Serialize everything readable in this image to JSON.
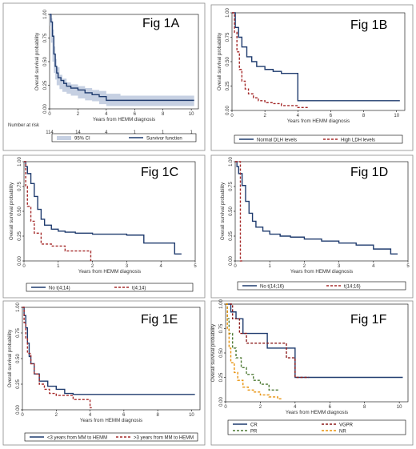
{
  "chart_data": [
    {
      "id": "A",
      "type": "line",
      "panel_label": "Fig 1A",
      "xlabel": "Years from HEMM diagnosis",
      "ylabel": "Overall survival probability",
      "xlim": [
        0,
        10.5
      ],
      "ylim": [
        0,
        1
      ],
      "xticks": [
        "0",
        "2",
        "4",
        "6",
        "8",
        "10"
      ],
      "yticks": [
        "0.00",
        "0.25",
        "0.50",
        "0.75",
        "1.00"
      ],
      "risk_table": {
        "title": "Number at risk",
        "values": [
          "114",
          "14",
          "4",
          "1",
          "1",
          "1"
        ]
      },
      "ci_band": {
        "name": "95% CI",
        "color": "#c6d0e2",
        "x": [
          0,
          0.1,
          0.2,
          0.3,
          0.4,
          0.5,
          0.7,
          0.9,
          1.2,
          1.5,
          2.0,
          2.5,
          3.0,
          3.5,
          4.0,
          5.0,
          6.0,
          8.0,
          10.2
        ],
        "upper": [
          1.0,
          0.96,
          0.84,
          0.66,
          0.53,
          0.44,
          0.36,
          0.32,
          0.28,
          0.26,
          0.24,
          0.22,
          0.2,
          0.19,
          0.16,
          0.14,
          0.14,
          0.14,
          0.14
        ],
        "lower": [
          1.0,
          0.88,
          0.7,
          0.5,
          0.38,
          0.31,
          0.25,
          0.21,
          0.18,
          0.16,
          0.14,
          0.11,
          0.09,
          0.08,
          0.05,
          0.03,
          0.03,
          0.03,
          0.03
        ]
      },
      "series": [
        {
          "name": "Survivor function",
          "color": "#1f3b6e",
          "dash": "",
          "x": [
            0,
            0.1,
            0.2,
            0.3,
            0.4,
            0.5,
            0.6,
            0.8,
            1.0,
            1.2,
            1.5,
            2.0,
            2.5,
            3.0,
            3.5,
            4.0,
            10.2
          ],
          "y": [
            1.0,
            0.92,
            0.77,
            0.58,
            0.45,
            0.38,
            0.33,
            0.3,
            0.27,
            0.24,
            0.22,
            0.2,
            0.17,
            0.15,
            0.13,
            0.09,
            0.09
          ]
        }
      ],
      "legend": [
        "95% CI",
        "Survivor function"
      ]
    },
    {
      "id": "B",
      "type": "line",
      "panel_label": "Fig 1B",
      "xlabel": "Years from HEMM diagnosis",
      "ylabel": "Overall survival probability",
      "xlim": [
        0,
        10.5
      ],
      "ylim": [
        0,
        1
      ],
      "xticks": [
        "0",
        "2",
        "4",
        "6",
        "8",
        "10"
      ],
      "yticks": [
        "0.00",
        "0.25",
        "0.50",
        "0.75",
        "1.00"
      ],
      "series": [
        {
          "name": "Normal DLH levels",
          "color": "#1f3b6e",
          "dash": "",
          "x": [
            0,
            0.2,
            0.4,
            0.6,
            0.9,
            1.2,
            1.5,
            2.0,
            2.5,
            3.0,
            3.8,
            4.0,
            10.2
          ],
          "y": [
            1.0,
            0.85,
            0.75,
            0.65,
            0.55,
            0.5,
            0.45,
            0.42,
            0.4,
            0.38,
            0.38,
            0.1,
            0.1
          ]
        },
        {
          "name": "High LDH levels",
          "color": "#a52a2a",
          "dash": "3,2",
          "x": [
            0,
            0.15,
            0.3,
            0.45,
            0.6,
            0.8,
            1.0,
            1.3,
            1.6,
            2.0,
            2.5,
            3.0,
            4.0,
            4.7
          ],
          "y": [
            1.0,
            0.8,
            0.6,
            0.42,
            0.3,
            0.22,
            0.17,
            0.13,
            0.1,
            0.08,
            0.07,
            0.05,
            0.03,
            0.03
          ]
        }
      ],
      "legend": [
        "Normal DLH levels",
        "High LDH levels"
      ]
    },
    {
      "id": "C",
      "type": "line",
      "panel_label": "Fig 1C",
      "xlabel": "Years from HEMM diagnosis",
      "ylabel": "Overall survival probability",
      "xlim": [
        0,
        5
      ],
      "ylim": [
        0,
        1
      ],
      "xticks": [
        "0",
        "1",
        "2",
        "3",
        "4",
        "5"
      ],
      "yticks": [
        "0.00",
        "0.25",
        "0.50",
        "0.75",
        "1.00"
      ],
      "series": [
        {
          "name": "No t(4;14)",
          "color": "#1f3b6e",
          "dash": "",
          "x": [
            0,
            0.05,
            0.1,
            0.2,
            0.3,
            0.4,
            0.5,
            0.6,
            0.8,
            1.0,
            1.2,
            1.5,
            2.0,
            2.5,
            3.0,
            3.5,
            4.0,
            4.4,
            4.6
          ],
          "y": [
            1.0,
            0.95,
            0.88,
            0.78,
            0.65,
            0.52,
            0.42,
            0.36,
            0.32,
            0.3,
            0.29,
            0.28,
            0.27,
            0.27,
            0.26,
            0.18,
            0.18,
            0.07,
            0.07
          ]
        },
        {
          "name": "t(4;14)",
          "color": "#a52a2a",
          "dash": "3,2",
          "x": [
            0,
            0.05,
            0.1,
            0.2,
            0.3,
            0.5,
            0.8,
            1.2,
            1.6,
            1.9,
            1.95
          ],
          "y": [
            1.0,
            0.75,
            0.55,
            0.4,
            0.28,
            0.17,
            0.15,
            0.1,
            0.1,
            0.1,
            0.0
          ]
        }
      ],
      "legend": [
        "No t(4;14)",
        "t(4;14)"
      ]
    },
    {
      "id": "D",
      "type": "line",
      "panel_label": "Fig 1D",
      "xlabel": "Years from HEMM diagnosis",
      "ylabel": "Overall survival probability",
      "xlim": [
        0,
        5
      ],
      "ylim": [
        0,
        1
      ],
      "xticks": [
        "0",
        "1",
        "2",
        "3",
        "4",
        "5"
      ],
      "yticks": [
        "0.00",
        "0.25",
        "0.50",
        "0.75",
        "1.00"
      ],
      "series": [
        {
          "name": "No t(14;16)",
          "color": "#1f3b6e",
          "dash": "",
          "x": [
            0,
            0.05,
            0.1,
            0.2,
            0.3,
            0.4,
            0.5,
            0.6,
            0.8,
            1.0,
            1.3,
            1.6,
            2.0,
            2.5,
            3.0,
            3.5,
            4.0,
            4.5,
            4.7
          ],
          "y": [
            1.0,
            0.95,
            0.88,
            0.76,
            0.6,
            0.48,
            0.4,
            0.34,
            0.3,
            0.27,
            0.25,
            0.24,
            0.22,
            0.2,
            0.18,
            0.16,
            0.12,
            0.07,
            0.07
          ]
        },
        {
          "name": "t(14;16)",
          "color": "#a52a2a",
          "dash": "3,2",
          "x": [
            0,
            0.15,
            0.15,
            0.2
          ],
          "y": [
            1.0,
            1.0,
            0.0,
            0.0
          ]
        }
      ],
      "legend": [
        "No t(14;16)",
        "t(14;16)"
      ]
    },
    {
      "id": "E",
      "type": "line",
      "panel_label": "Fig 1E",
      "xlabel": "Years from HEMM diagnosis",
      "ylabel": "Overall survival probability",
      "xlim": [
        0,
        10.5
      ],
      "ylim": [
        0,
        1
      ],
      "xticks": [
        "0",
        "2",
        "4",
        "6",
        "8",
        "10"
      ],
      "yticks": [
        "0.00",
        "0.25",
        "0.50",
        "0.75",
        "1.00"
      ],
      "series": [
        {
          "name": "<3 years from MM to HEMM",
          "color": "#1f3b6e",
          "dash": "",
          "x": [
            0,
            0.1,
            0.2,
            0.3,
            0.4,
            0.5,
            0.7,
            1.0,
            1.5,
            2.0,
            2.5,
            3.0,
            4.0,
            10.2
          ],
          "y": [
            1.0,
            0.92,
            0.8,
            0.65,
            0.52,
            0.45,
            0.35,
            0.28,
            0.23,
            0.2,
            0.16,
            0.15,
            0.15,
            0.15
          ]
        },
        {
          "name": ">3 years from MM to HEMM",
          "color": "#a52a2a",
          "dash": "3,2",
          "x": [
            0,
            0.1,
            0.2,
            0.3,
            0.5,
            0.7,
            1.0,
            1.3,
            1.6,
            2.0,
            3.0,
            4.0,
            4.0,
            4.1
          ],
          "y": [
            1.0,
            0.85,
            0.7,
            0.55,
            0.45,
            0.35,
            0.25,
            0.2,
            0.16,
            0.14,
            0.1,
            0.08,
            0.02,
            0.02
          ]
        }
      ],
      "legend": [
        "<3 years from MM to HEMM",
        ">3 years from MM to HEMM"
      ]
    },
    {
      "id": "F",
      "type": "line",
      "panel_label": "Fig 1F",
      "xlabel": "Years from HEMM diagnosis",
      "ylabel": "Overall survival probability",
      "xlim": [
        0,
        10.5
      ],
      "ylim": [
        0,
        1
      ],
      "xticks": [
        "0",
        "2",
        "4",
        "6",
        "8",
        "10"
      ],
      "yticks": [
        "0.00",
        "0.25",
        "0.50",
        "0.75",
        "1.00"
      ],
      "series": [
        {
          "name": "CR",
          "color": "#1f3b6e",
          "dash": "",
          "x": [
            0,
            0.3,
            0.6,
            1.0,
            2.0,
            2.4,
            3.5,
            4.0,
            10.2
          ],
          "y": [
            1.0,
            0.92,
            0.85,
            0.7,
            0.7,
            0.55,
            0.55,
            0.25,
            0.25
          ]
        },
        {
          "name": "VGPR",
          "color": "#8b1a1a",
          "dash": "3,2",
          "x": [
            0,
            0.4,
            0.8,
            1.2,
            2.5,
            3.5,
            4.0,
            4.8
          ],
          "y": [
            1.0,
            0.85,
            0.7,
            0.6,
            0.6,
            0.45,
            0.25,
            0.25
          ]
        },
        {
          "name": "PR",
          "color": "#4f7a35",
          "dash": "3,2",
          "x": [
            0,
            0.1,
            0.2,
            0.4,
            0.6,
            0.9,
            1.2,
            1.6,
            2.0,
            2.5,
            3.0
          ],
          "y": [
            1.0,
            0.85,
            0.7,
            0.55,
            0.45,
            0.35,
            0.28,
            0.22,
            0.18,
            0.12,
            0.1
          ]
        },
        {
          "name": "NR",
          "color": "#e8920c",
          "dash": "3,2",
          "x": [
            0,
            0.1,
            0.2,
            0.3,
            0.5,
            0.7,
            1.0,
            1.3,
            1.6,
            2.0,
            2.5,
            3.0,
            3.3
          ],
          "y": [
            1.0,
            0.75,
            0.55,
            0.4,
            0.3,
            0.22,
            0.15,
            0.12,
            0.1,
            0.07,
            0.05,
            0.03,
            0.03
          ]
        }
      ],
      "legend": [
        "CR",
        "VGPR",
        "PR",
        "NR"
      ]
    }
  ]
}
